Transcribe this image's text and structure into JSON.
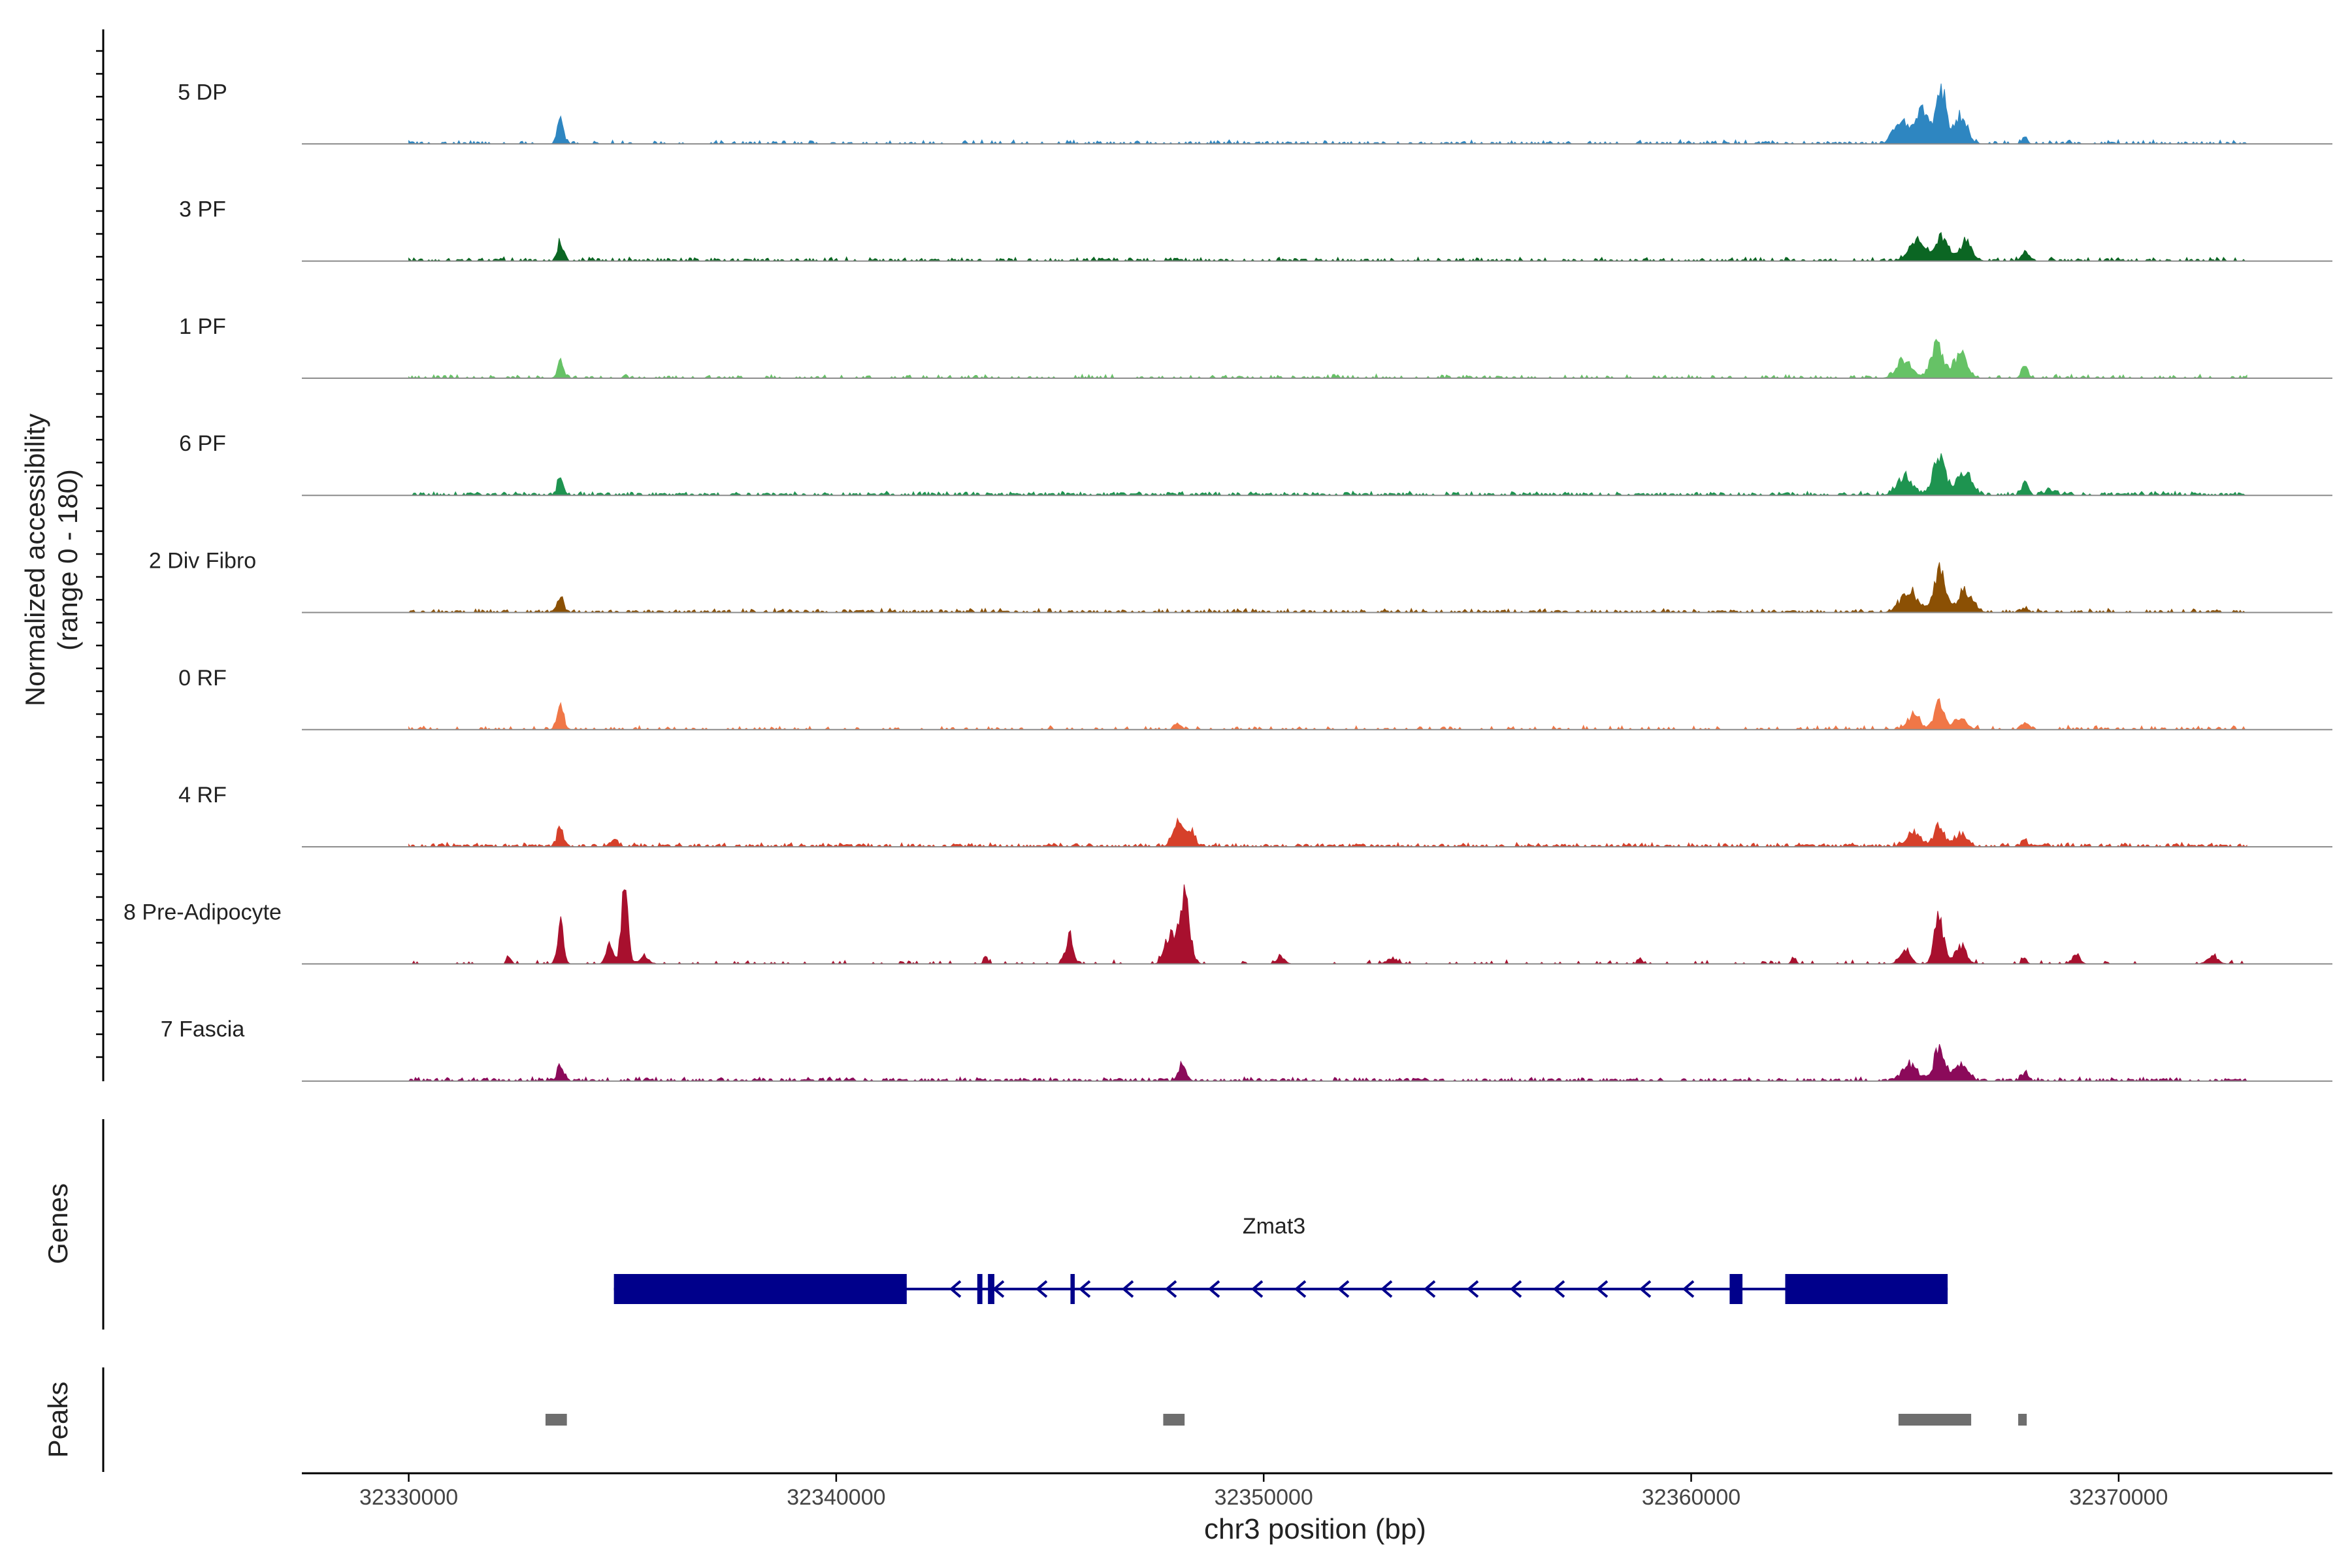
{
  "chart_data": {
    "type": "area",
    "title": "",
    "xlabel": "chr3 position (bp)",
    "ylabel": "Normalized accessibility",
    "ylabel_sub": "(range 0 - 180)",
    "xlim": [
      32327500,
      32375000
    ],
    "x_ticks": [
      32330000,
      32340000,
      32350000,
      32360000,
      32370000
    ],
    "x_tick_labels": [
      "32330000",
      "32340000",
      "32350000",
      "32360000",
      "32370000"
    ],
    "grid": false,
    "tracks": [
      {
        "name": "5 DP",
        "color": "#2E86C1",
        "noise": 0.35,
        "peaks": [
          [
            32333550,
            0.28,
            70
          ],
          [
            32364900,
            0.3,
            160
          ],
          [
            32365400,
            0.42,
            150
          ],
          [
            32365850,
            0.62,
            120
          ],
          [
            32366300,
            0.33,
            150
          ],
          [
            32367800,
            0.08,
            60
          ]
        ]
      },
      {
        "name": "3 PF",
        "color": "#0B6623",
        "noise": 0.4,
        "peaks": [
          [
            32333550,
            0.22,
            70
          ],
          [
            32365300,
            0.24,
            200
          ],
          [
            32365850,
            0.28,
            140
          ],
          [
            32366400,
            0.22,
            160
          ],
          [
            32367800,
            0.12,
            80
          ]
        ]
      },
      {
        "name": "1 PF",
        "color": "#66C266",
        "noise": 0.3,
        "peaks": [
          [
            32333550,
            0.22,
            70
          ],
          [
            32365000,
            0.2,
            180
          ],
          [
            32365750,
            0.4,
            150
          ],
          [
            32366300,
            0.3,
            150
          ],
          [
            32367800,
            0.18,
            70
          ]
        ]
      },
      {
        "name": "6 PF",
        "color": "#1E9450",
        "noise": 0.55,
        "peaks": [
          [
            32333550,
            0.22,
            70
          ],
          [
            32365000,
            0.22,
            180
          ],
          [
            32365800,
            0.42,
            150
          ],
          [
            32366400,
            0.26,
            160
          ],
          [
            32367800,
            0.14,
            80
          ],
          [
            32368400,
            0.06,
            120
          ]
        ]
      },
      {
        "name": "2 Div Fibro",
        "color": "#8B5004",
        "noise": 0.45,
        "peaks": [
          [
            32333550,
            0.18,
            70
          ],
          [
            32365100,
            0.25,
            200
          ],
          [
            32365800,
            0.5,
            130
          ],
          [
            32366400,
            0.25,
            180
          ],
          [
            32367800,
            0.06,
            70
          ]
        ]
      },
      {
        "name": "0 RF",
        "color": "#F07747",
        "noise": 0.25,
        "peaks": [
          [
            32333550,
            0.28,
            80
          ],
          [
            32348000,
            0.07,
            80
          ],
          [
            32365200,
            0.16,
            160
          ],
          [
            32365800,
            0.3,
            120
          ],
          [
            32366300,
            0.14,
            150
          ],
          [
            32367800,
            0.1,
            70
          ]
        ]
      },
      {
        "name": "4 RF",
        "color": "#D6402A",
        "noise": 0.5,
        "peaks": [
          [
            32333550,
            0.25,
            70
          ],
          [
            32334800,
            0.09,
            90
          ],
          [
            32348000,
            0.28,
            120
          ],
          [
            32348300,
            0.18,
            100
          ],
          [
            32365200,
            0.16,
            160
          ],
          [
            32365800,
            0.22,
            130
          ],
          [
            32366300,
            0.14,
            150
          ],
          [
            32367800,
            0.08,
            70
          ]
        ]
      },
      {
        "name": "8 Pre-Adipocyte",
        "color": "#A8102E",
        "noise": 0.15,
        "peaks": [
          [
            32332350,
            0.08,
            50
          ],
          [
            32333550,
            0.5,
            70
          ],
          [
            32334700,
            0.25,
            80
          ],
          [
            32335050,
            0.85,
            80
          ],
          [
            32335500,
            0.08,
            120
          ],
          [
            32343500,
            0.08,
            50
          ],
          [
            32345450,
            0.32,
            90
          ],
          [
            32347800,
            0.35,
            120
          ],
          [
            32348150,
            0.8,
            120
          ],
          [
            32350400,
            0.1,
            90
          ],
          [
            32353000,
            0.07,
            120
          ],
          [
            32358800,
            0.07,
            50
          ],
          [
            32362400,
            0.08,
            50
          ],
          [
            32365000,
            0.18,
            120
          ],
          [
            32365800,
            0.55,
            110
          ],
          [
            32366300,
            0.22,
            130
          ],
          [
            32367800,
            0.09,
            50
          ],
          [
            32369000,
            0.12,
            90
          ],
          [
            32372200,
            0.11,
            120
          ]
        ]
      },
      {
        "name": "7 Fascia",
        "color": "#8B0A5A",
        "noise": 0.5,
        "peaks": [
          [
            32333550,
            0.2,
            70
          ],
          [
            32348100,
            0.2,
            90
          ],
          [
            32365100,
            0.18,
            180
          ],
          [
            32365800,
            0.38,
            130
          ],
          [
            32366300,
            0.22,
            150
          ],
          [
            32367800,
            0.1,
            70
          ]
        ]
      }
    ],
    "genes_label": "Genes",
    "gene": {
      "name": "Zmat3",
      "strand": "-",
      "start": 32334800,
      "end": 32366000,
      "exons": [
        [
          32334800,
          32341650
        ],
        [
          32343300,
          32343420
        ],
        [
          32343550,
          32343700
        ],
        [
          32345480,
          32345580
        ],
        [
          32360900,
          32361200
        ],
        [
          32362200,
          32366000
        ]
      ]
    },
    "peaks_label": "Peaks",
    "peak_regions": [
      [
        32333200,
        32333700
      ],
      [
        32347650,
        32348150
      ],
      [
        32364850,
        32366550
      ],
      [
        32367650,
        32367850
      ]
    ]
  }
}
